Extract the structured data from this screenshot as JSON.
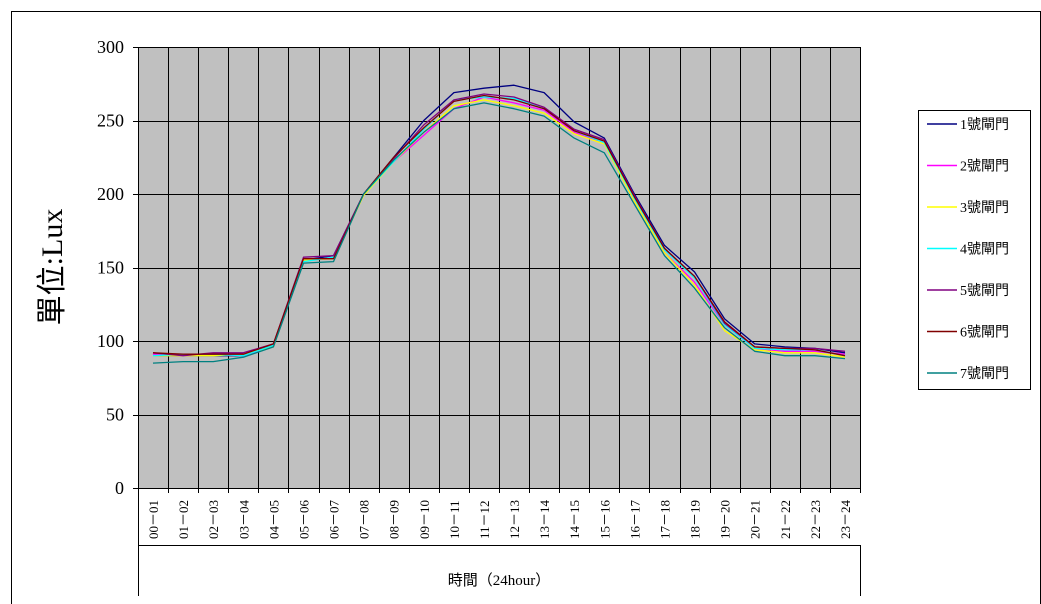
{
  "chart_data": {
    "type": "line",
    "title": "",
    "xlabel": "時間（24hour）",
    "ylabel": "單位:Lux",
    "ylim": [
      0,
      300
    ],
    "yticks": [
      0,
      50,
      100,
      150,
      200,
      250,
      300
    ],
    "grid": true,
    "legend_position": "right",
    "categories": [
      "00－01",
      "01－02",
      "02－03",
      "03－04",
      "04－05",
      "05－06",
      "06－07",
      "07－08",
      "08－09",
      "09－10",
      "10－11",
      "11－12",
      "12－13",
      "13－14",
      "14－15",
      "15－16",
      "16－17",
      "17－18",
      "18－19",
      "19－20",
      "20－21",
      "21－22",
      "22－23",
      "23－24"
    ],
    "colors": {
      "plot_background": "#c0c0c0",
      "grid": "#000000"
    },
    "series": [
      {
        "name": "1號閘門",
        "color": "#000080",
        "values": [
          90,
          90,
          90,
          90,
          97,
          155,
          158,
          200,
          225,
          250,
          269,
          272,
          274,
          269,
          249,
          238,
          200,
          165,
          147,
          115,
          98,
          96,
          95,
          92
        ]
      },
      {
        "name": "2號閘門",
        "color": "#ff00ff",
        "values": [
          91,
          90,
          91,
          90,
          96,
          155,
          156,
          200,
          222,
          240,
          258,
          266,
          262,
          257,
          242,
          235,
          195,
          160,
          140,
          111,
          95,
          93,
          93,
          91
        ]
      },
      {
        "name": "3號閘門",
        "color": "#ffff00",
        "values": [
          90,
          90,
          90,
          91,
          96,
          155,
          156,
          199,
          222,
          242,
          260,
          264,
          260,
          255,
          241,
          234,
          195,
          160,
          138,
          107,
          94,
          92,
          92,
          89
        ]
      },
      {
        "name": "4號閘門",
        "color": "#00ffff",
        "values": [
          90,
          91,
          91,
          90,
          97,
          154,
          157,
          200,
          222,
          244,
          264,
          266,
          265,
          258,
          243,
          235,
          197,
          162,
          143,
          111,
          95,
          94,
          94,
          90
        ]
      },
      {
        "name": "5號閘門",
        "color": "#800080",
        "values": [
          92,
          90,
          92,
          92,
          98,
          157,
          158,
          200,
          224,
          247,
          264,
          268,
          266,
          259,
          244,
          237,
          199,
          163,
          144,
          112,
          96,
          95,
          95,
          93
        ]
      },
      {
        "name": "6號閘門",
        "color": "#800000",
        "values": [
          92,
          91,
          91,
          91,
          98,
          156,
          156,
          200,
          225,
          245,
          263,
          267,
          264,
          258,
          243,
          236,
          198,
          163,
          144,
          113,
          96,
          95,
          94,
          90
        ]
      },
      {
        "name": "7號閘門",
        "color": "#008080",
        "values": [
          85,
          86,
          86,
          89,
          96,
          153,
          154,
          200,
          223,
          242,
          258,
          262,
          258,
          253,
          238,
          228,
          193,
          158,
          136,
          109,
          93,
          90,
          90,
          88
        ]
      }
    ]
  }
}
